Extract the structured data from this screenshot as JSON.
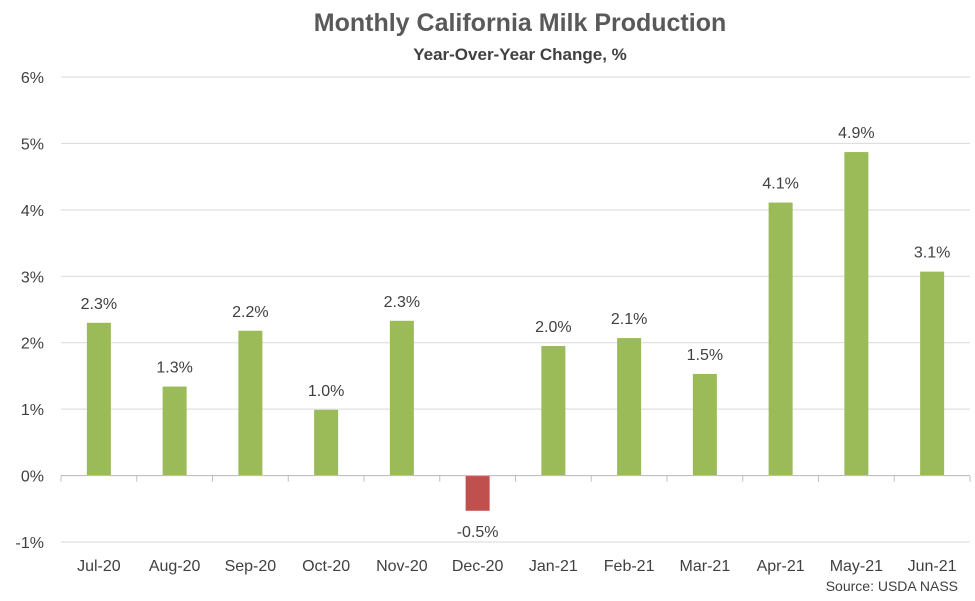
{
  "chart_data": {
    "type": "bar",
    "title": "Monthly California Milk Production",
    "subtitle": "Year-Over-Year Change, %",
    "source": "Source: USDA NASS",
    "categories": [
      "Jul-20",
      "Aug-20",
      "Sep-20",
      "Oct-20",
      "Nov-20",
      "Dec-20",
      "Jan-21",
      "Feb-21",
      "Mar-21",
      "Apr-21",
      "May-21",
      "Jun-21"
    ],
    "values": [
      2.3,
      1.34,
      2.18,
      0.99,
      2.33,
      -0.53,
      1.95,
      2.07,
      1.53,
      4.11,
      4.87,
      3.07
    ],
    "data_labels": [
      "2.3%",
      "1.3%",
      "2.2%",
      "1.0%",
      "2.3%",
      "-0.5%",
      "2.0%",
      "2.1%",
      "1.5%",
      "4.1%",
      "4.9%",
      "3.1%"
    ],
    "ylim": [
      -1,
      6
    ],
    "yticks": [
      -1,
      0,
      1,
      2,
      3,
      4,
      5,
      6
    ],
    "ytick_labels": [
      "-1%",
      "0%",
      "1%",
      "2%",
      "3%",
      "4%",
      "5%",
      "6%"
    ],
    "grid": true,
    "colors": {
      "positive": "#9BBB59",
      "negative": "#C0504D",
      "grid": "#D9D9D9",
      "axis": "#BFBFBF"
    }
  }
}
